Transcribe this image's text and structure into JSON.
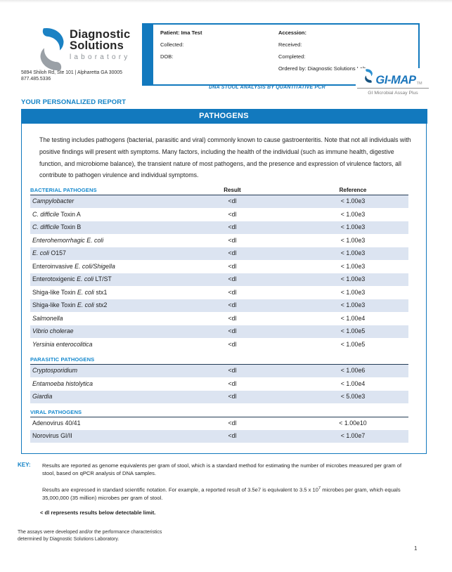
{
  "colors": {
    "accent_blue": "#1279BE",
    "heading_blue": "#1182C6",
    "row_shade": "#DCE4F1",
    "section_line": "#223A54",
    "logo_gray": "#9AA0A6",
    "tagline_gray": "#7A7A7A"
  },
  "header": {
    "logo": {
      "line1": "Diagnostic",
      "line2": "Solutions",
      "line3": "laboratory"
    },
    "address_line1": "5894 Shiloh Rd, Ste 101 | Alpharetta GA 30005",
    "address_line2": "877.485.5336",
    "patient_box": {
      "patient": "Patient: Ima Test",
      "collected": "Collected:",
      "dob": "DOB:",
      "accession": "Accession:",
      "received": "Received:",
      "completed": "Completed:",
      "ordered_by": "Ordered by: Diagnostic Solutions Lab"
    },
    "subtitle": "DNA STOOL ANALYSIS BY QUANTITATIVE PCR",
    "gimap": {
      "name": "GI-MAP",
      "tm": "TM",
      "tagline": "GI Microbial Assay Plus"
    }
  },
  "report": {
    "title": "YOUR PERSONALIZED REPORT",
    "banner": "PATHOGENS",
    "intro": "The testing includes pathogens (bacterial, parasitic and viral) commonly known to cause gastroenteritis. Note that not all individuals with positive findings will present with symptoms. Many factors, including the health of the individual (such as immune health, digestive function, and microbiome balance), the transient nature of most pathogens, and the presence and expression of virulence factors, all contribute to pathogen virulence and individual symptoms.",
    "columns": {
      "result": "Result",
      "reference": "Reference"
    },
    "sections": [
      {
        "label": "BACTERIAL PATHOGENS",
        "first_shaded": true,
        "rows": [
          {
            "name": [
              {
                "t": "Campylobacter",
                "i": true
              }
            ],
            "result": "<dl",
            "reference": "< 1.00e3"
          },
          {
            "name": [
              {
                "t": "C. difficile",
                "i": true
              },
              {
                "t": " Toxin A"
              }
            ],
            "result": "<dl",
            "reference": "< 1.00e3"
          },
          {
            "name": [
              {
                "t": "C. difficile",
                "i": true
              },
              {
                "t": " Toxin B"
              }
            ],
            "result": "<dl",
            "reference": "< 1.00e3"
          },
          {
            "name": [
              {
                "t": "Enterohemorrhagic E. coli",
                "i": true
              }
            ],
            "result": "<dl",
            "reference": "< 1.00e3"
          },
          {
            "name": [
              {
                "t": "E. coli",
                "i": true
              },
              {
                "t": " O157"
              }
            ],
            "result": "<dl",
            "reference": "< 1.00e3"
          },
          {
            "name": [
              {
                "t": "Enteroinvasive "
              },
              {
                "t": "E. coli/Shigella",
                "i": true
              }
            ],
            "result": "<dl",
            "reference": "< 1.00e3"
          },
          {
            "name": [
              {
                "t": "Enterotoxigenic "
              },
              {
                "t": "E. coli",
                "i": true
              },
              {
                "t": " LT/ST"
              }
            ],
            "result": "<dl",
            "reference": "< 1.00e3"
          },
          {
            "name": [
              {
                "t": "Shiga-like Toxin "
              },
              {
                "t": "E. coli",
                "i": true
              },
              {
                "t": " stx1"
              }
            ],
            "result": "<dl",
            "reference": "< 1.00e3"
          },
          {
            "name": [
              {
                "t": "Shiga-like Toxin "
              },
              {
                "t": "E. coli",
                "i": true
              },
              {
                "t": " stx2"
              }
            ],
            "result": "<dl",
            "reference": "< 1.00e3"
          },
          {
            "name": [
              {
                "t": "Salmonella",
                "i": true
              }
            ],
            "result": "<dl",
            "reference": "< 1.00e4"
          },
          {
            "name": [
              {
                "t": "Vibrio cholerae",
                "i": true
              }
            ],
            "result": "<dl",
            "reference": "< 1.00e5"
          },
          {
            "name": [
              {
                "t": "Yersinia enterocolitica",
                "i": true
              }
            ],
            "result": "<dl",
            "reference": "< 1.00e5"
          }
        ]
      },
      {
        "label": "PARASITIC PATHOGENS",
        "first_shaded": true,
        "rows": [
          {
            "name": [
              {
                "t": "Cryptosporidium",
                "i": true
              }
            ],
            "result": "<dl",
            "reference": "< 1.00e6"
          },
          {
            "name": [
              {
                "t": "Entamoeba histolytica",
                "i": true
              }
            ],
            "result": "<dl",
            "reference": "< 1.00e4"
          },
          {
            "name": [
              {
                "t": "Giardia",
                "i": true
              }
            ],
            "result": "<dl",
            "reference": "< 5.00e3"
          }
        ]
      },
      {
        "label": "VIRAL PATHOGENS",
        "first_shaded": false,
        "rows": [
          {
            "name": [
              {
                "t": "Adenovirus 40/41"
              }
            ],
            "result": "<dl",
            "reference": "< 1.00e10"
          },
          {
            "name": [
              {
                "t": "Norovirus GI/II"
              }
            ],
            "result": "<dl",
            "reference": "< 1.00e7"
          }
        ]
      }
    ]
  },
  "key": {
    "label": "KEY:",
    "para1": "Results are reported as genome equivalents per gram of stool, which is a standard method for estimating the number of microbes measured per gram of stool, based on qPCR analysis of DNA samples.",
    "para2_pre": "Results are expressed in standard scientific notation. For example, a reported result of 3.5e7 is equivalent to 3.5 x 10",
    "para2_sup": "7",
    "para2_post": " microbes per gram, which equals 35,000,000 (35 million) microbes per gram of stool.",
    "note": "< dl represents results below detectable limit."
  },
  "footer": {
    "line1": "The assays were developed and/or the performance characteristics",
    "line2": "determined by Diagnostic Solutions Laboratory.",
    "page_number": "1"
  }
}
